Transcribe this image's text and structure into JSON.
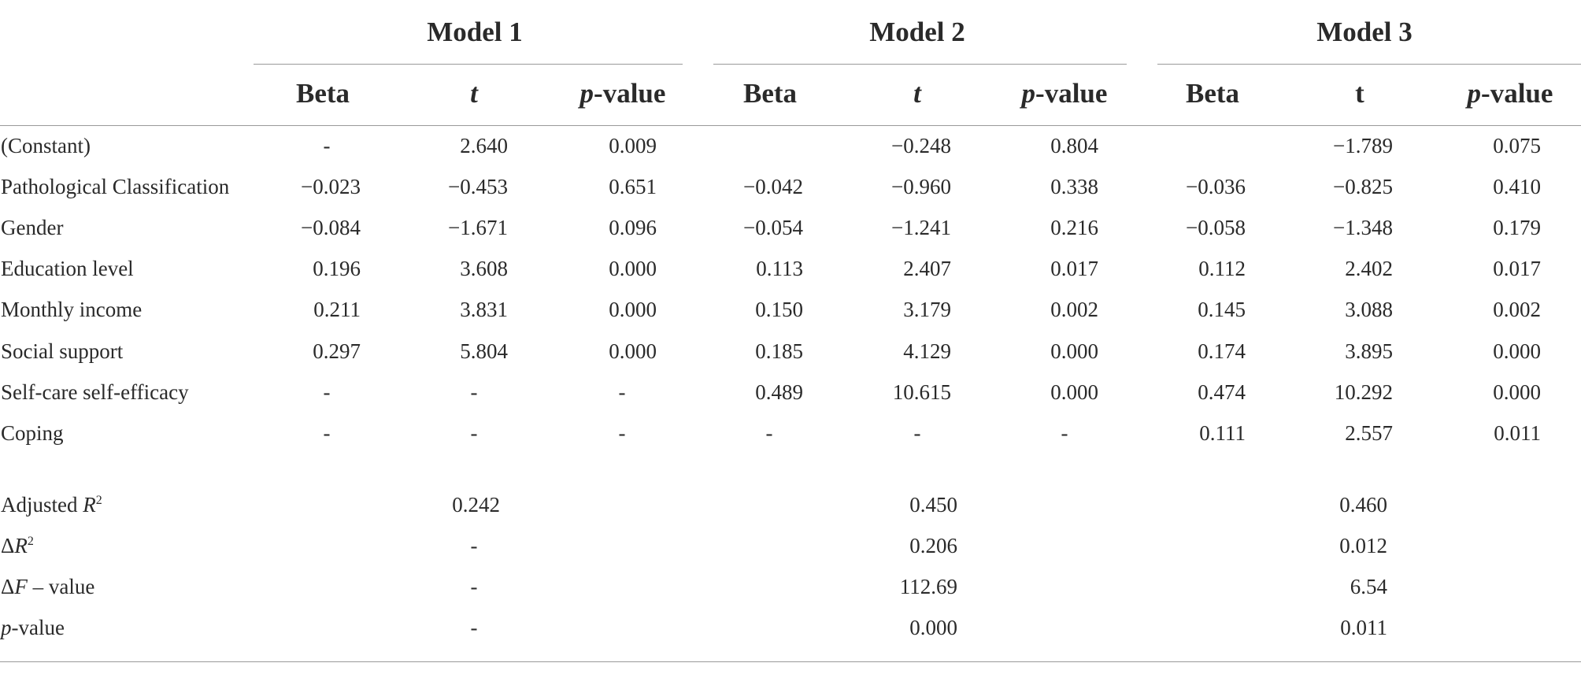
{
  "models": [
    "Model 1",
    "Model 2",
    "Model 3"
  ],
  "subheaders": [
    "Beta",
    "t",
    "-value"
  ],
  "p_letter": "p",
  "dash": "-",
  "rows": [
    {
      "label": "(Constant)",
      "cells": [
        "-",
        "2.640",
        "0.009",
        "",
        "−0.248",
        "0.804",
        "",
        "−1.789",
        "0.075"
      ]
    },
    {
      "label": "Pathological Classification",
      "cells": [
        "−0.023",
        "−0.453",
        "0.651",
        "−0.042",
        "−0.960",
        "0.338",
        "−0.036",
        "−0.825",
        "0.410"
      ]
    },
    {
      "label": "Gender",
      "cells": [
        "−0.084",
        "−1.671",
        "0.096",
        "−0.054",
        "−1.241",
        "0.216",
        "−0.058",
        "−1.348",
        "0.179"
      ]
    },
    {
      "label": "Education level",
      "cells": [
        "0.196",
        "3.608",
        "0.000",
        "0.113",
        "2.407",
        "0.017",
        "0.112",
        "2.402",
        "0.017"
      ]
    },
    {
      "label": "Monthly income",
      "cells": [
        "0.211",
        "3.831",
        "0.000",
        "0.150",
        "3.179",
        "0.002",
        "0.145",
        "3.088",
        "0.002"
      ]
    },
    {
      "label": "Social support",
      "cells": [
        "0.297",
        "5.804",
        "0.000",
        "0.185",
        "4.129",
        "0.000",
        "0.174",
        "3.895",
        "0.000"
      ]
    },
    {
      "label": "Self-care self-efficacy",
      "cells": [
        "-",
        "-",
        "-",
        "0.489",
        "10.615",
        "0.000",
        "0.474",
        "10.292",
        "0.000"
      ]
    },
    {
      "label": "Coping",
      "cells": [
        "-",
        "-",
        "-",
        "-",
        "-",
        "-",
        "0.111",
        "2.557",
        "0.011"
      ]
    }
  ],
  "summary": [
    {
      "prefix": "Adjusted ",
      "var": "R",
      "sup": "2",
      "rest": "",
      "values": [
        "0.242",
        "0.450",
        "0.460"
      ]
    },
    {
      "prefix": "Δ",
      "var": "R",
      "sup": "2",
      "rest": "",
      "values": [
        "-",
        "0.206",
        "0.012"
      ]
    },
    {
      "prefix": "Δ",
      "var": "F",
      "sup": "",
      "rest": " – value",
      "values": [
        "-",
        "112.69",
        "6.54"
      ]
    },
    {
      "prefix": "",
      "var": "p",
      "sup": "",
      "rest": "-value",
      "values": [
        "-",
        "0.000",
        "0.011"
      ]
    }
  ]
}
